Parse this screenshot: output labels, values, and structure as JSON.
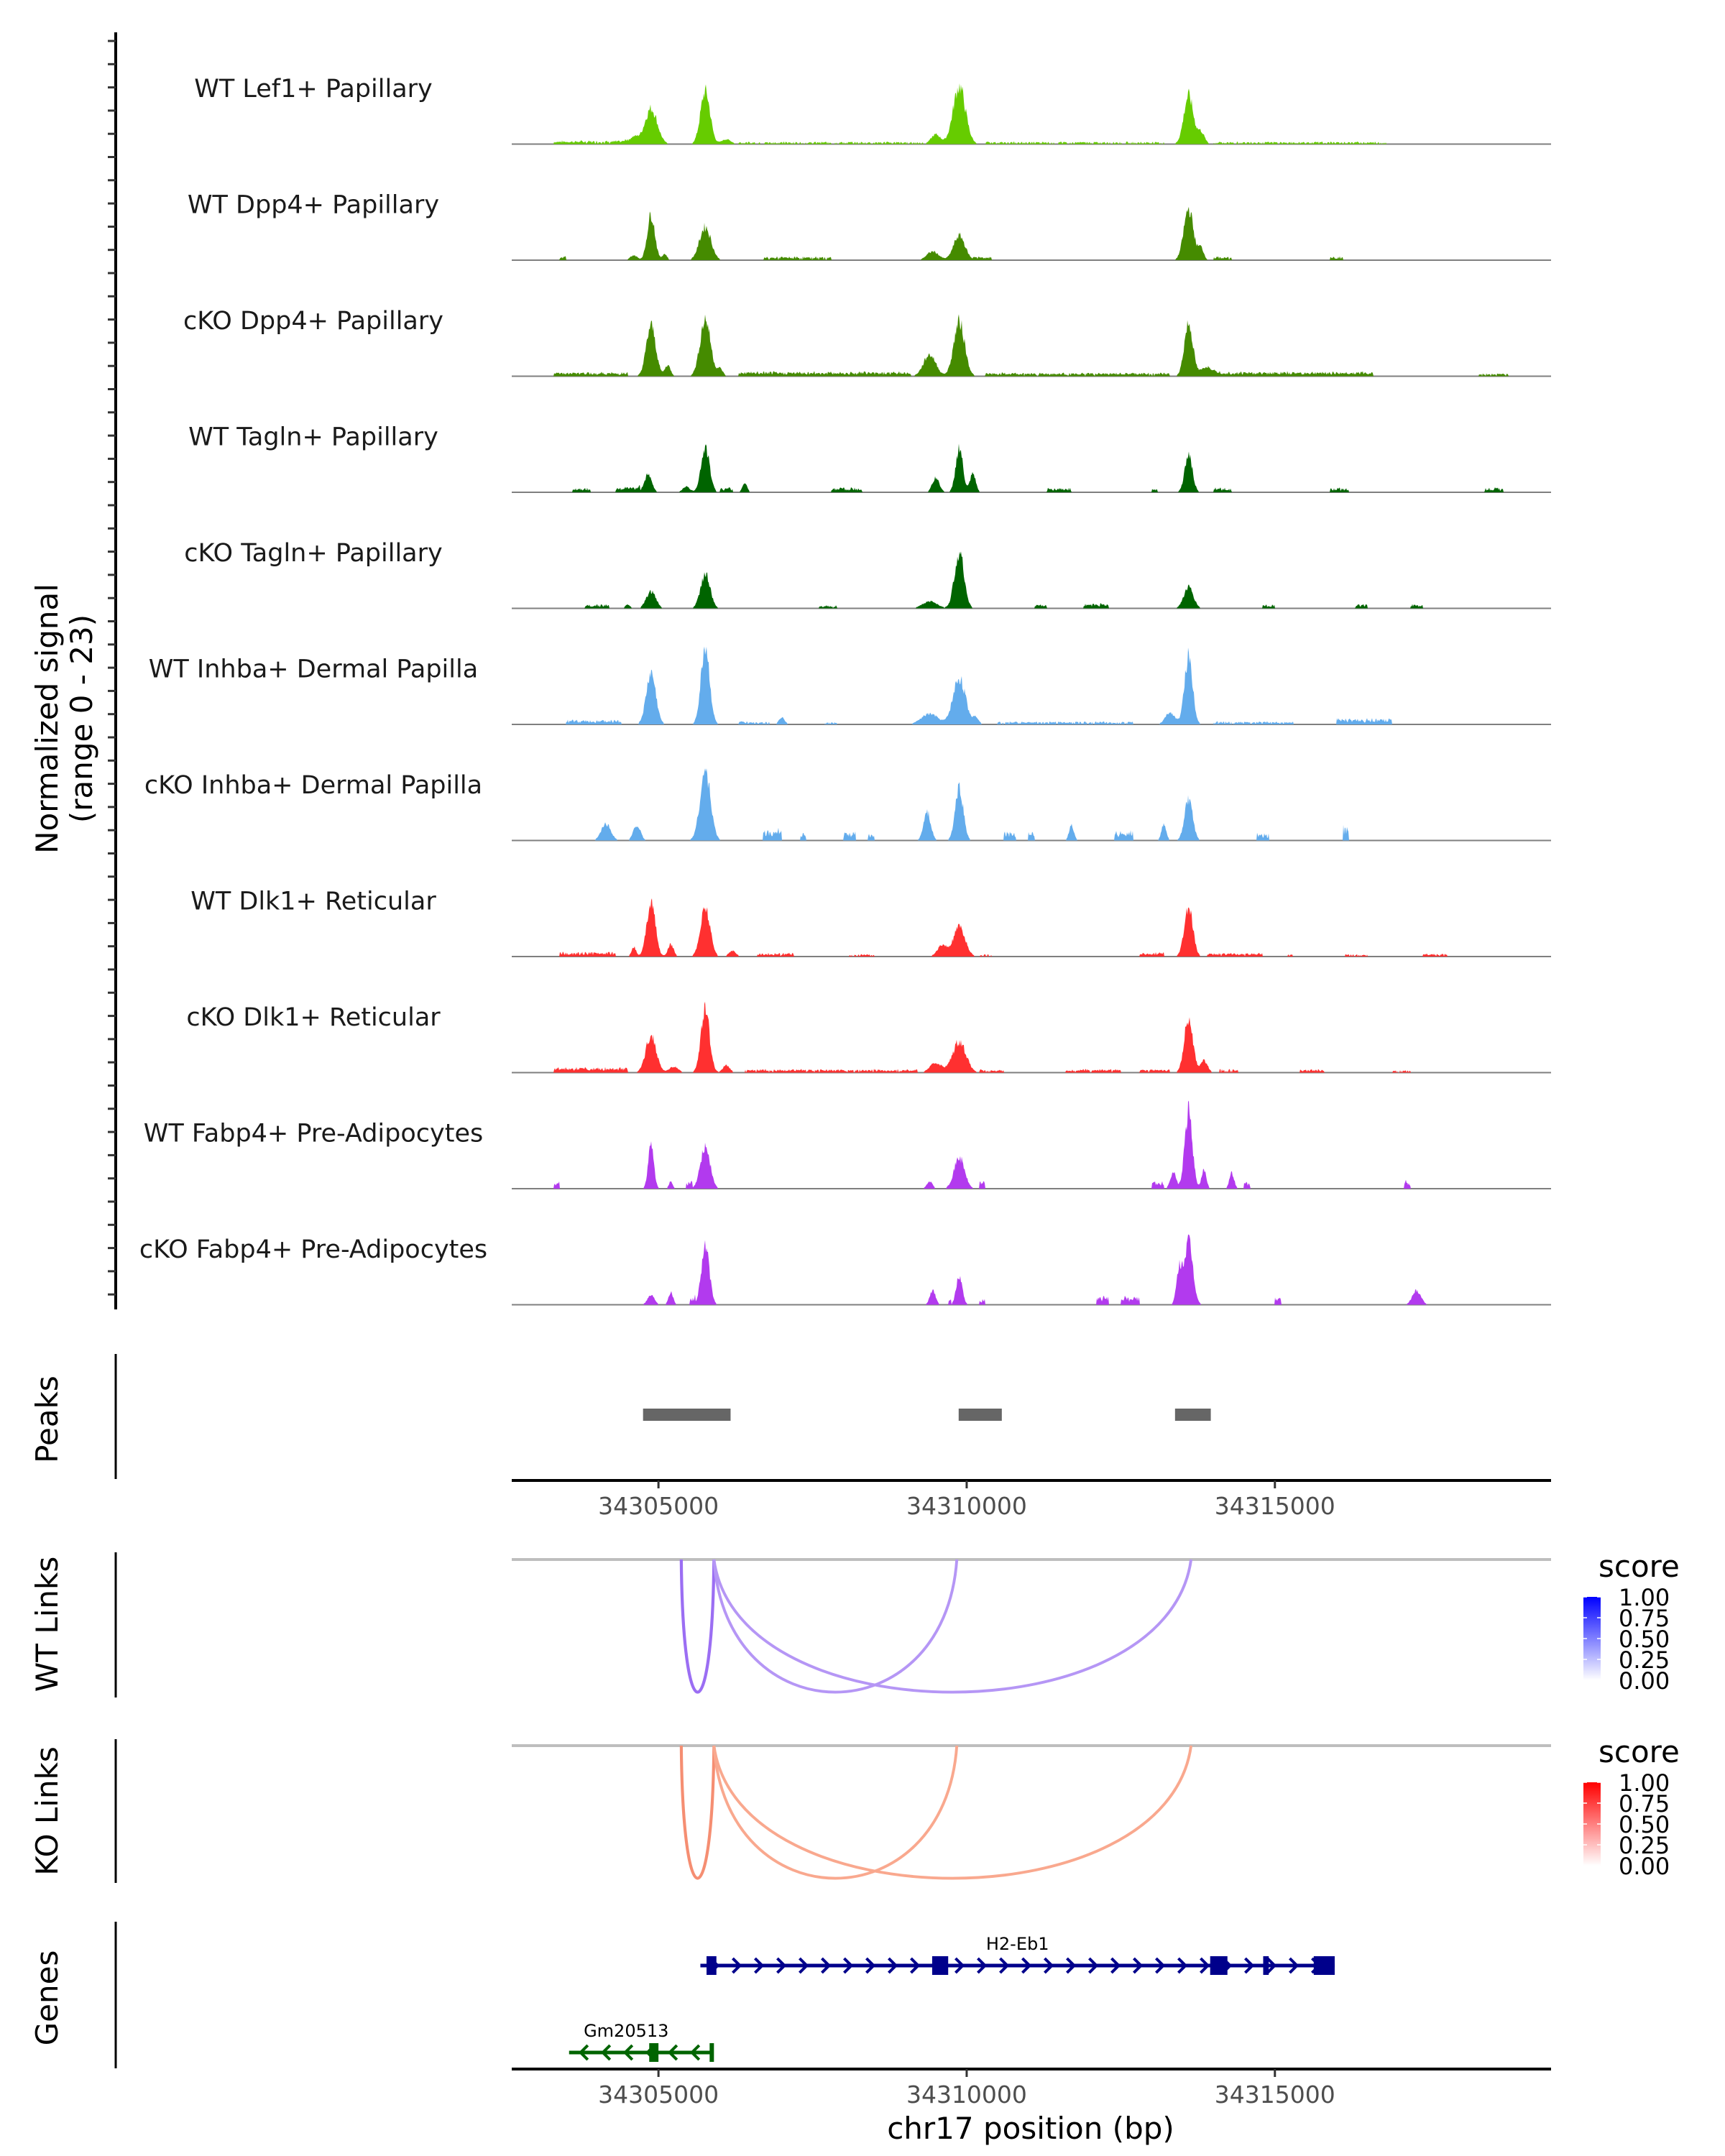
{
  "chart_data": {
    "type": "area",
    "title": "",
    "region": {
      "chrom": "chr17",
      "start": 34302620,
      "end": 34319480
    },
    "ylabel": "Normalized signal\n(range 0 - 23)",
    "ylabel_lines": [
      "Normalized signal",
      "(range 0 - 23)"
    ],
    "ylim": [
      0,
      23
    ],
    "xlabel": "chr17 position (bp)",
    "x_ticks": [
      34305000,
      34310000,
      34315000
    ],
    "x_tick_labels": [
      "34305000",
      "34310000",
      "34315000"
    ],
    "coverage_tracks": [
      {
        "name": "WT Lef1+ Papillary",
        "color": "#66CC00",
        "peaks": [
          [
            34304880,
            7.4,
            260
          ],
          [
            34305760,
            11.0,
            200
          ],
          [
            34309880,
            12.0,
            260
          ],
          [
            34313600,
            10.1,
            200
          ],
          [
            34313800,
            2.5,
            150
          ],
          [
            34309500,
            2.0,
            200
          ],
          [
            34304600,
            1.5,
            200
          ],
          [
            34306100,
            1.0,
            200
          ]
        ],
        "noise": [
          [
            34303300,
            34304500,
            0.6
          ],
          [
            34306300,
            34309300,
            0.4
          ],
          [
            34310300,
            34313200,
            0.4
          ],
          [
            34314000,
            34316800,
            0.4
          ]
        ]
      },
      {
        "name": "WT Dpp4+ Papillary",
        "color": "#458B00",
        "peaks": [
          [
            34304880,
            9.5,
            160
          ],
          [
            34305760,
            6.9,
            240
          ],
          [
            34309880,
            5.1,
            240
          ],
          [
            34309450,
            1.8,
            250
          ],
          [
            34313600,
            10.7,
            200
          ],
          [
            34313800,
            2.5,
            120
          ],
          [
            34304600,
            1.0,
            150
          ],
          [
            34305100,
            1.3,
            100
          ]
        ],
        "noise": [
          [
            34303400,
            34303500,
            0.7
          ],
          [
            34306700,
            34307800,
            0.6
          ],
          [
            34310100,
            34310400,
            0.6
          ],
          [
            34314000,
            34314300,
            0.6
          ],
          [
            34315900,
            34316100,
            0.6
          ]
        ]
      },
      {
        "name": "cKO Dpp4+ Papillary",
        "color": "#458B00",
        "peaks": [
          [
            34304880,
            10.5,
            200
          ],
          [
            34305760,
            11.9,
            220
          ],
          [
            34309880,
            11.3,
            230
          ],
          [
            34309400,
            4.5,
            260
          ],
          [
            34313600,
            11.0,
            180
          ],
          [
            34313900,
            2.0,
            250
          ],
          [
            34305150,
            2.3,
            120
          ],
          [
            34306000,
            1.5,
            120
          ]
        ],
        "noise": [
          [
            34303300,
            34304500,
            0.7
          ],
          [
            34306300,
            34309100,
            0.8
          ],
          [
            34310300,
            34313300,
            0.6
          ],
          [
            34314000,
            34316600,
            0.8
          ],
          [
            34318300,
            34318800,
            0.5
          ]
        ]
      },
      {
        "name": "WT Tagln+ Papillary",
        "color": "#006400",
        "peaks": [
          [
            34304830,
            3.6,
            160
          ],
          [
            34305760,
            9.2,
            180
          ],
          [
            34309880,
            9.2,
            150
          ],
          [
            34310100,
            3.8,
            120
          ],
          [
            34309500,
            3.0,
            150
          ],
          [
            34313600,
            7.8,
            160
          ],
          [
            34305450,
            1.2,
            150
          ],
          [
            34306400,
            2.0,
            100
          ]
        ],
        "noise": [
          [
            34303600,
            34303900,
            0.8
          ],
          [
            34304300,
            34304700,
            1.0
          ],
          [
            34306000,
            34306200,
            0.8
          ],
          [
            34307800,
            34308300,
            0.8
          ],
          [
            34311300,
            34311700,
            0.8
          ],
          [
            34313000,
            34313100,
            0.8
          ],
          [
            34314000,
            34314300,
            0.8
          ],
          [
            34315900,
            34316200,
            0.8
          ],
          [
            34318400,
            34318700,
            0.8
          ]
        ]
      },
      {
        "name": "cKO Tagln+ Papillary",
        "color": "#006400",
        "peaks": [
          [
            34304880,
            3.5,
            200
          ],
          [
            34305760,
            7.1,
            200
          ],
          [
            34309880,
            11.7,
            200
          ],
          [
            34309400,
            1.5,
            300
          ],
          [
            34313600,
            4.4,
            200
          ],
          [
            34304500,
            0.8,
            100
          ]
        ],
        "noise": [
          [
            34303800,
            34304200,
            0.7
          ],
          [
            34307600,
            34307900,
            0.6
          ],
          [
            34311100,
            34311300,
            0.7
          ],
          [
            34311900,
            34312300,
            0.9
          ],
          [
            34314800,
            34315000,
            0.7
          ],
          [
            34316300,
            34316500,
            0.7
          ],
          [
            34317200,
            34317400,
            0.7
          ]
        ]
      },
      {
        "name": "WT Inhba+ Dermal Papilla",
        "color": "#63ACEC",
        "peaks": [
          [
            34304880,
            10.7,
            200
          ],
          [
            34305760,
            16.3,
            180
          ],
          [
            34309880,
            9.6,
            260
          ],
          [
            34309400,
            2.2,
            350
          ],
          [
            34313600,
            14.3,
            170
          ],
          [
            34313300,
            2.5,
            200
          ],
          [
            34307000,
            1.5,
            120
          ],
          [
            34310150,
            1.5,
            120
          ]
        ],
        "noise": [
          [
            34303500,
            34304400,
            0.8
          ],
          [
            34306300,
            34306800,
            0.5
          ],
          [
            34307700,
            34307900,
            0.4
          ],
          [
            34310500,
            34312700,
            0.5
          ],
          [
            34314000,
            34315300,
            0.5
          ],
          [
            34316000,
            34316900,
            1.0
          ]
        ]
      },
      {
        "name": "cKO Inhba+ Dermal Papilla",
        "color": "#63ACEC",
        "peaks": [
          [
            34305760,
            14.4,
            220
          ],
          [
            34309880,
            10.9,
            170
          ],
          [
            34309360,
            5.9,
            150
          ],
          [
            34313600,
            8.5,
            170
          ],
          [
            34313200,
            3.5,
            100
          ],
          [
            34304150,
            3.5,
            200
          ],
          [
            34304650,
            3.2,
            150
          ],
          [
            34311700,
            3.2,
            100
          ]
        ],
        "noise": [
          [
            34306700,
            34307000,
            2.0
          ],
          [
            34307300,
            34307400,
            1.5
          ],
          [
            34308000,
            34308200,
            1.5
          ],
          [
            34308400,
            34308500,
            1.2
          ],
          [
            34310600,
            34310800,
            1.5
          ],
          [
            34311000,
            34311100,
            1.5
          ],
          [
            34312400,
            34312700,
            1.8
          ],
          [
            34314700,
            34314900,
            1.5
          ],
          [
            34316100,
            34316200,
            2.5
          ]
        ]
      },
      {
        "name": "WT Dlk1+ Reticular",
        "color": "#FF3030",
        "peaks": [
          [
            34304880,
            11.6,
            180
          ],
          [
            34305760,
            10.4,
            200
          ],
          [
            34309880,
            6.0,
            250
          ],
          [
            34309600,
            2.3,
            200
          ],
          [
            34313600,
            10.1,
            180
          ],
          [
            34305200,
            2.5,
            120
          ],
          [
            34304600,
            2.0,
            100
          ],
          [
            34306200,
            1.2,
            150
          ]
        ],
        "noise": [
          [
            34303400,
            34304300,
            0.8
          ],
          [
            34306600,
            34307200,
            0.6
          ],
          [
            34308100,
            34308500,
            0.4
          ],
          [
            34310200,
            34310400,
            0.4
          ],
          [
            34312800,
            34313200,
            0.7
          ],
          [
            34313900,
            34314800,
            0.6
          ],
          [
            34315200,
            34315300,
            0.4
          ],
          [
            34316100,
            34316500,
            0.4
          ],
          [
            34317400,
            34317800,
            0.5
          ]
        ]
      },
      {
        "name": "cKO Dlk1+ Reticular",
        "color": "#FF3030",
        "peaks": [
          [
            34304880,
            7.7,
            220
          ],
          [
            34305760,
            13.1,
            180
          ],
          [
            34309880,
            6.5,
            280
          ],
          [
            34309500,
            2.0,
            250
          ],
          [
            34313600,
            11.6,
            180
          ],
          [
            34313850,
            2.5,
            150
          ],
          [
            34306100,
            1.5,
            150
          ],
          [
            34305250,
            1.2,
            200
          ]
        ],
        "noise": [
          [
            34303300,
            34304500,
            0.9
          ],
          [
            34306400,
            34309200,
            0.6
          ],
          [
            34310200,
            34310600,
            0.5
          ],
          [
            34311600,
            34312500,
            0.6
          ],
          [
            34312800,
            34313300,
            0.6
          ],
          [
            34314100,
            34314400,
            0.6
          ],
          [
            34315400,
            34315800,
            0.6
          ],
          [
            34316900,
            34317200,
            0.4
          ]
        ]
      },
      {
        "name": "WT Fabp4+ Pre-Adipocytes",
        "color": "#B23AEE",
        "peaks": [
          [
            34304880,
            8.8,
            120
          ],
          [
            34305760,
            8.8,
            200
          ],
          [
            34309880,
            6.5,
            220
          ],
          [
            34313600,
            16.1,
            160
          ],
          [
            34313850,
            4.0,
            100
          ],
          [
            34313350,
            3.5,
            120
          ],
          [
            34314300,
            3.3,
            100
          ],
          [
            34305200,
            1.5,
            80
          ],
          [
            34309400,
            1.5,
            120
          ]
        ],
        "noise": [
          [
            34303300,
            34303400,
            1.6
          ],
          [
            34305450,
            34305550,
            1.3
          ],
          [
            34310200,
            34310300,
            1.5
          ],
          [
            34313000,
            34313200,
            1.4
          ],
          [
            34314500,
            34314600,
            1.3
          ],
          [
            34317100,
            34317200,
            1.4
          ]
        ]
      },
      {
        "name": "cKO Fabp4+ Pre-Adipocytes",
        "color": "#B23AEE",
        "peaks": [
          [
            34304880,
            2.0,
            150
          ],
          [
            34305760,
            12.1,
            170
          ],
          [
            34309880,
            5.9,
            130
          ],
          [
            34309450,
            3.0,
            120
          ],
          [
            34313600,
            12.9,
            180
          ],
          [
            34313450,
            7.0,
            120
          ],
          [
            34305200,
            2.6,
            100
          ],
          [
            34317300,
            3.0,
            180
          ]
        ],
        "noise": [
          [
            34305500,
            34305600,
            1.5
          ],
          [
            34309700,
            34309750,
            1.0
          ],
          [
            34310200,
            34310300,
            1.0
          ],
          [
            34312100,
            34312300,
            1.5
          ],
          [
            34312500,
            34312800,
            1.5
          ],
          [
            34315000,
            34315100,
            1.5
          ]
        ]
      }
    ],
    "peaks_track": {
      "label": "Peaks",
      "color": "#666666",
      "regions": [
        [
          34304750,
          34306170
        ],
        [
          34309870,
          34310570
        ],
        [
          34313380,
          34313960
        ]
      ]
    },
    "links_tracks": [
      {
        "label": "WT Links",
        "baseline_color": "#BEBEBE",
        "legend": {
          "title": "score",
          "low_color": "#FFFFFF",
          "high_color": "#0000FF",
          "ticks": [
            "1.00",
            "0.75",
            "0.50",
            "0.25",
            "0.00"
          ]
        },
        "links": [
          {
            "start": 34305370,
            "end": 34305900,
            "score": 0.62,
            "color": "#9B6EF3"
          },
          {
            "start": 34305900,
            "end": 34309840,
            "score": 0.45,
            "color": "#B596F5"
          },
          {
            "start": 34305900,
            "end": 34313640,
            "score": 0.45,
            "color": "#B596F5"
          }
        ]
      },
      {
        "label": "KO Links",
        "baseline_color": "#BEBEBE",
        "legend": {
          "title": "score",
          "low_color": "#FFFFFF",
          "high_color": "#FF0000",
          "ticks": [
            "1.00",
            "0.75",
            "0.50",
            "0.25",
            "0.00"
          ]
        },
        "links": [
          {
            "start": 34305370,
            "end": 34305900,
            "score": 0.58,
            "color": "#F58E72"
          },
          {
            "start": 34305900,
            "end": 34309840,
            "score": 0.45,
            "color": "#F9A88E"
          },
          {
            "start": 34305900,
            "end": 34313640,
            "score": 0.45,
            "color": "#F9A88E"
          }
        ]
      }
    ],
    "genes_track": {
      "label": "Genes",
      "genes": [
        {
          "name": "H2-Eb1",
          "strand": "+",
          "color": "#00008B",
          "start": 34305680,
          "end": 34315970,
          "exons": [
            [
              34305780,
              34305940
            ],
            [
              34309440,
              34309700
            ],
            [
              34313950,
              34314230
            ],
            [
              34314810,
              34314900
            ],
            [
              34315630,
              34315970
            ]
          ]
        },
        {
          "name": "Gm20513",
          "strand": "-",
          "color": "#006400",
          "start": 34303550,
          "end": 34305870,
          "exons": [
            [
              34304850,
              34305000
            ],
            [
              34305830,
              34305870
            ]
          ]
        }
      ]
    }
  }
}
